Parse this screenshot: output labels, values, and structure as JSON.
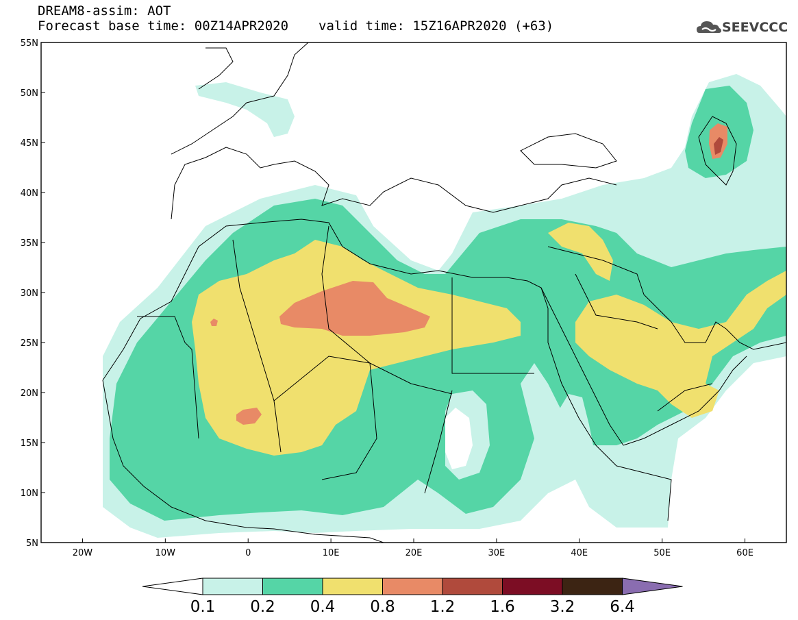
{
  "header": {
    "model_line": "DREAM8-assim: AOT",
    "base_time": "Forecast base time: 00Z14APR2020",
    "valid_time": "valid time: 15Z16APR2020 (+63)"
  },
  "logo": {
    "text": "SEEVCCC",
    "icon": "cloud-icon"
  },
  "map": {
    "lon_range": [
      -25,
      65
    ],
    "lat_range": [
      5,
      55
    ],
    "lon_ticks": [
      "20W",
      "10W",
      "0",
      "10E",
      "20E",
      "30E",
      "40E",
      "50E",
      "60E"
    ],
    "lat_ticks": [
      "55N",
      "50N",
      "45N",
      "40N",
      "35N",
      "30N",
      "25N",
      "20N",
      "15N",
      "10N",
      "5N"
    ]
  },
  "colorbar": {
    "levels": [
      "0.1",
      "0.2",
      "0.4",
      "0.8",
      "1.2",
      "1.6",
      "3.2",
      "6.4"
    ],
    "colors": [
      "#c8f2e8",
      "#55d5a6",
      "#f0e06e",
      "#e88a66",
      "#b04a3c",
      "#7c0d24",
      "#3c2413",
      "#8a6db0"
    ]
  }
}
